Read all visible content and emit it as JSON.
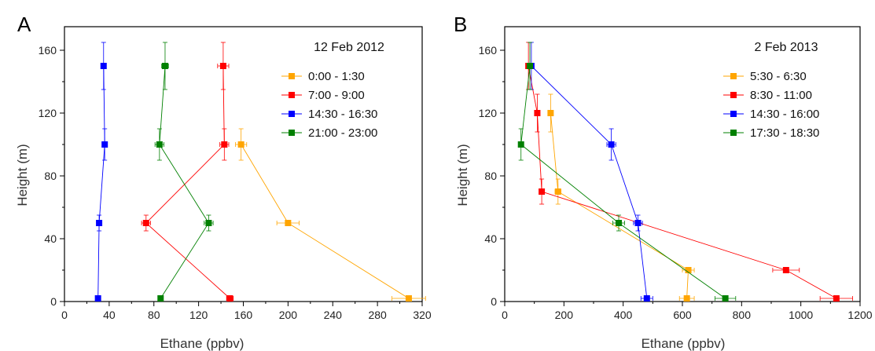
{
  "chart_data": [
    {
      "type": "scatter",
      "panel": "A",
      "title": "12 Feb 2012",
      "xlabel": "Ethane (ppbv)",
      "ylabel": "Height (m)",
      "xlim": [
        0,
        320
      ],
      "ylim": [
        0,
        175
      ],
      "xticks": [
        "0",
        "40",
        "80",
        "120",
        "160",
        "200",
        "240",
        "280",
        "320"
      ],
      "yticks": [
        "0",
        "40",
        "80",
        "120",
        "160"
      ],
      "grid": false,
      "legend_position": "top-right",
      "series": [
        {
          "name": "0:00 - 1:30",
          "color": "#ffa500",
          "points": [
            {
              "x": 308,
              "y": 2,
              "xerr": 15
            },
            {
              "x": 200,
              "y": 50,
              "xerr": 10
            },
            {
              "x": 158,
              "y": 100,
              "xerr": 5,
              "yerr": 10
            }
          ]
        },
        {
          "name": "7:00 - 9:00",
          "color": "#ff0000",
          "points": [
            {
              "x": 148,
              "y": 2,
              "xerr": 3
            },
            {
              "x": 73,
              "y": 50,
              "xerr": 4,
              "yerr": 5
            },
            {
              "x": 143,
              "y": 100,
              "xerr": 4,
              "yerr": 10
            },
            {
              "x": 142,
              "y": 150,
              "xerr": 5,
              "yerr": 15
            }
          ]
        },
        {
          "name": "14:30 - 16:30",
          "color": "#0000ff",
          "points": [
            {
              "x": 30,
              "y": 2,
              "xerr": 1
            },
            {
              "x": 31,
              "y": 50,
              "xerr": 1,
              "yerr": 5
            },
            {
              "x": 36,
              "y": 100,
              "xerr": 1,
              "yerr": 10
            },
            {
              "x": 35,
              "y": 150,
              "xerr": 1,
              "yerr": 15
            }
          ]
        },
        {
          "name": "21:00 - 23:00",
          "color": "#008000",
          "points": [
            {
              "x": 86,
              "y": 2,
              "xerr": 2
            },
            {
              "x": 129,
              "y": 50,
              "xerr": 4,
              "yerr": 5
            },
            {
              "x": 85,
              "y": 100,
              "xerr": 4,
              "yerr": 10
            },
            {
              "x": 90,
              "y": 150,
              "xerr": 3,
              "yerr": 15
            }
          ]
        }
      ]
    },
    {
      "type": "scatter",
      "panel": "B",
      "title": "2 Feb 2013",
      "xlabel": "Ethane (ppbv)",
      "ylabel": "Height (m)",
      "xlim": [
        0,
        1200
      ],
      "ylim": [
        0,
        175
      ],
      "xticks": [
        "0",
        "200",
        "400",
        "600",
        "800",
        "1000",
        "1200"
      ],
      "yticks": [
        "0",
        "40",
        "80",
        "120",
        "160"
      ],
      "grid": false,
      "legend_position": "top-right",
      "series": [
        {
          "name": "5:30 - 6:30",
          "color": "#ffa500",
          "points": [
            {
              "x": 615,
              "y": 2,
              "xerr": 25
            },
            {
              "x": 620,
              "y": 20,
              "xerr": 20
            },
            {
              "x": 180,
              "y": 70,
              "xerr": 10,
              "yerr": 8
            },
            {
              "x": 155,
              "y": 120,
              "xerr": 8,
              "yerr": 12
            }
          ]
        },
        {
          "name": "8:30 - 11:00",
          "color": "#ff0000",
          "points": [
            {
              "x": 1120,
              "y": 2,
              "xerr": 55
            },
            {
              "x": 950,
              "y": 20,
              "xerr": 45
            },
            {
              "x": 125,
              "y": 70,
              "xerr": 8,
              "yerr": 8
            },
            {
              "x": 110,
              "y": 120,
              "xerr": 6,
              "yerr": 12
            },
            {
              "x": 80,
              "y": 150,
              "xerr": 4,
              "yerr": 15
            }
          ]
        },
        {
          "name": "14:30 - 16:00",
          "color": "#0000ff",
          "points": [
            {
              "x": 480,
              "y": 2,
              "xerr": 20
            },
            {
              "x": 450,
              "y": 50,
              "xerr": 15,
              "yerr": 5
            },
            {
              "x": 360,
              "y": 100,
              "xerr": 15,
              "yerr": 10
            },
            {
              "x": 90,
              "y": 150,
              "xerr": 5,
              "yerr": 15
            }
          ]
        },
        {
          "name": "17:30 - 18:30",
          "color": "#008000",
          "points": [
            {
              "x": 745,
              "y": 2,
              "xerr": 35
            },
            {
              "x": 385,
              "y": 50,
              "xerr": 20,
              "yerr": 5
            },
            {
              "x": 55,
              "y": 100,
              "xerr": 5,
              "yerr": 10
            },
            {
              "x": 85,
              "y": 150,
              "xerr": 4,
              "yerr": 15
            }
          ]
        }
      ]
    }
  ]
}
